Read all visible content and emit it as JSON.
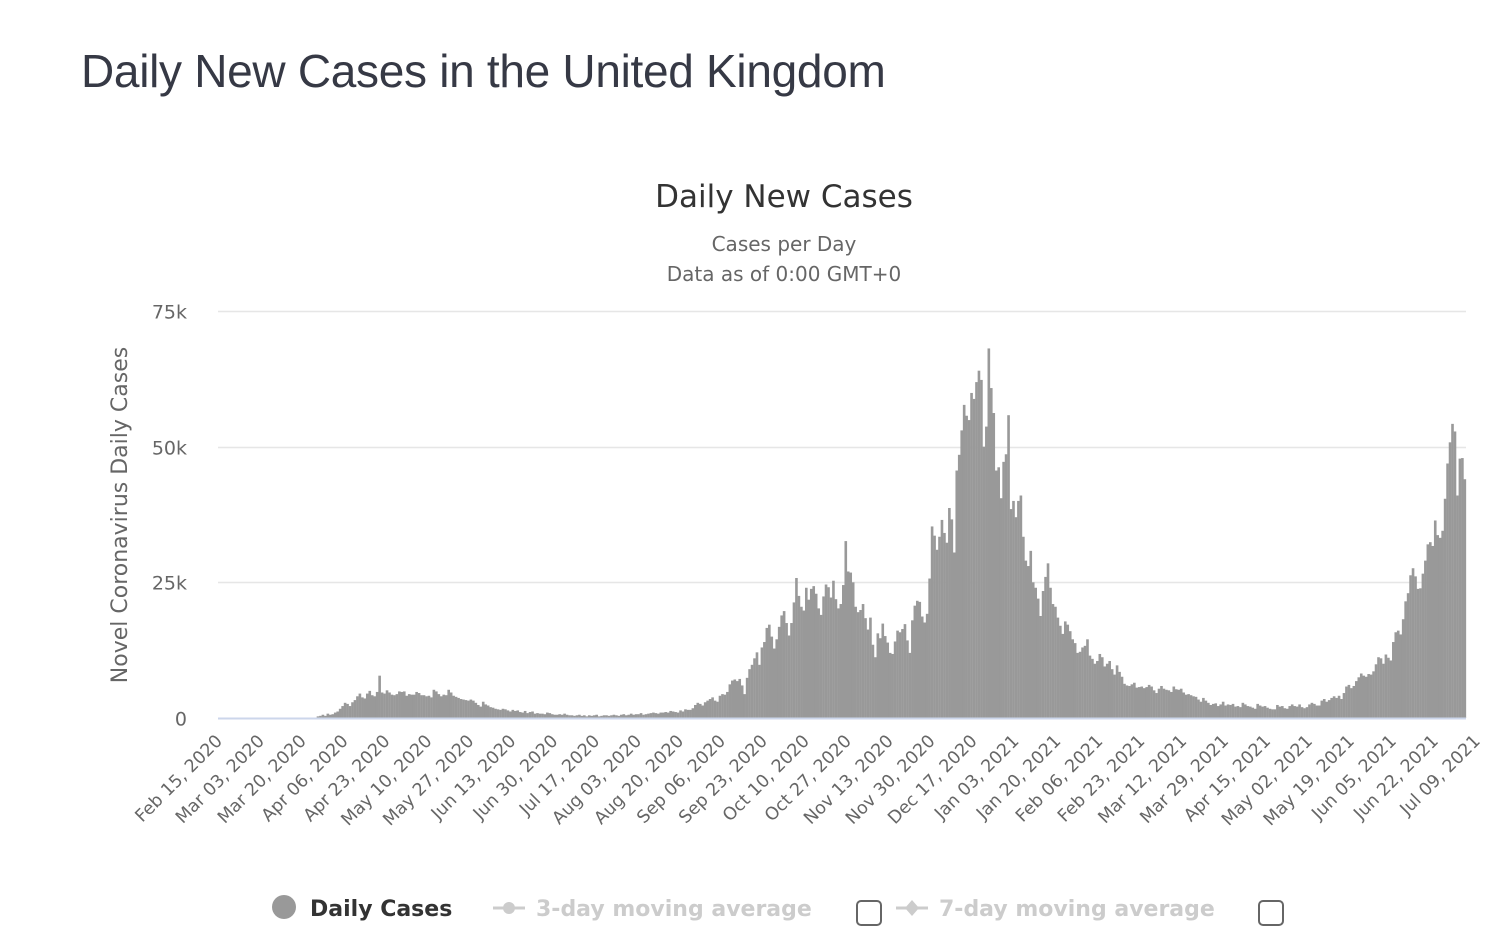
{
  "page": {
    "title": "Daily New Cases in the United Kingdom"
  },
  "colors": {
    "bar": "#999999",
    "grid": "#e6e6e6",
    "baseline": "#ccd6eb",
    "legend_active": "#333333",
    "legend_inactive": "#cccccc",
    "legend_checkbox": "#666666"
  },
  "legend": {
    "items": [
      {
        "label": "Daily Cases",
        "icon": "circle-marker-icon",
        "active": true
      },
      {
        "label": "3-day moving average",
        "icon": "line-circle-marker-icon",
        "active": false,
        "checkbox": false
      },
      {
        "label": "7-day moving average",
        "icon": "line-diamond-marker-icon",
        "active": false,
        "checkbox": false
      }
    ]
  },
  "chart_data": {
    "type": "bar",
    "title": "Daily New Cases",
    "subtitle_lines": [
      "Cases per Day",
      "Data as of 0:00 GMT+0"
    ],
    "xlabel": "",
    "ylabel": "Novel Coronavirus Daily Cases",
    "ylim": [
      0,
      75000
    ],
    "y_ticks": [
      0,
      25000,
      50000,
      75000
    ],
    "y_tick_labels": [
      "0",
      "25k",
      "50k",
      "75k"
    ],
    "grid": true,
    "legend_position": "bottom",
    "start_date": "2020-02-15",
    "x_tick_labels": [
      "Feb 15, 2020",
      "Mar 03, 2020",
      "Mar 20, 2020",
      "Apr 06, 2020",
      "Apr 23, 2020",
      "May 10, 2020",
      "May 27, 2020",
      "Jun 13, 2020",
      "Jun 30, 2020",
      "Jul 17, 2020",
      "Aug 03, 2020",
      "Aug 20, 2020",
      "Sep 06, 2020",
      "Sep 23, 2020",
      "Oct 10, 2020",
      "Oct 27, 2020",
      "Nov 13, 2020",
      "Nov 30, 2020",
      "Dec 17, 2020",
      "Jan 03, 2021",
      "Jan 20, 2021",
      "Feb 06, 2021",
      "Feb 23, 2021",
      "Mar 12, 2021",
      "Mar 29, 2021",
      "Apr 15, 2021",
      "May 02, 2021",
      "May 19, 2021",
      "Jun 05, 2021",
      "Jun 22, 2021",
      "Jul 09, 2021"
    ],
    "x_tick_interval_days": 17,
    "series": [
      {
        "name": "Daily Cases",
        "values": [
          0,
          0,
          0,
          0,
          0,
          0,
          0,
          0,
          0,
          0,
          0,
          0,
          0,
          0,
          0,
          0,
          0,
          0,
          0,
          0,
          0,
          0,
          0,
          0,
          0,
          0,
          0,
          0,
          0,
          0,
          0,
          0,
          0,
          0,
          0,
          0,
          0,
          0,
          0,
          0,
          300,
          400,
          600,
          400,
          800,
          600,
          700,
          1000,
          1200,
          1700,
          2200,
          2800,
          2600,
          2200,
          2900,
          3300,
          4000,
          4500,
          3800,
          3600,
          4500,
          5000,
          4200,
          4000,
          4800,
          7800,
          4700,
          4500,
          5100,
          4700,
          4300,
          4200,
          4400,
          4900,
          4800,
          4900,
          4100,
          4400,
          4300,
          4300,
          4800,
          4600,
          4200,
          4200,
          4000,
          4100,
          3800,
          5200,
          4900,
          4400,
          4000,
          4300,
          4200,
          5200,
          4700,
          4100,
          3900,
          3700,
          3500,
          3400,
          3300,
          3200,
          3400,
          3200,
          2800,
          2400,
          2100,
          3000,
          2500,
          2300,
          2000,
          1900,
          1700,
          1600,
          1500,
          1700,
          1600,
          1400,
          1200,
          1500,
          1300,
          1400,
          1100,
          1000,
          1300,
          900,
          1100,
          1200,
          800,
          900,
          800,
          800,
          700,
          1000,
          900,
          700,
          600,
          600,
          700,
          600,
          800,
          600,
          500,
          500,
          400,
          500,
          600,
          400,
          500,
          300,
          500,
          400,
          500,
          600,
          300,
          400,
          500,
          500,
          400,
          500,
          600,
          500,
          400,
          600,
          700,
          500,
          600,
          800,
          600,
          700,
          700,
          900,
          600,
          700,
          800,
          900,
          1000,
          900,
          800,
          1000,
          1000,
          1100,
          1000,
          1300,
          1200,
          1100,
          1000,
          1400,
          1200,
          1600,
          1500,
          1500,
          1800,
          2400,
          2800,
          2600,
          2300,
          2900,
          3200,
          3500,
          3800,
          3200,
          3000,
          4100,
          4400,
          4300,
          4800,
          6200,
          6900,
          7100,
          6800,
          7200,
          6000,
          4400,
          7400,
          9000,
          9800,
          11000,
          12100,
          9800,
          13000,
          14000,
          16600,
          17200,
          15000,
          12800,
          14500,
          16800,
          18900,
          19700,
          17500,
          15200,
          17500,
          21300,
          25800,
          22500,
          20500,
          19800,
          24000,
          21800,
          23800,
          24300,
          22900,
          20200,
          19000,
          22400,
          24600,
          24100,
          22200,
          25300,
          21900,
          20200,
          21000,
          24500,
          32600,
          27000,
          26800,
          25000,
          20500,
          19500,
          19900,
          21000,
          18400,
          16300,
          18500,
          13500,
          11200,
          15600,
          14700,
          17400,
          15100,
          13900,
          12000,
          11800,
          14100,
          16100,
          15800,
          16400,
          17300,
          14300,
          12000,
          18000,
          20700,
          21600,
          21400,
          18700,
          17600,
          19200,
          25700,
          35300,
          33600,
          31000,
          33400,
          36500,
          34100,
          32300,
          38700,
          36600,
          30500,
          45600,
          48500,
          53000,
          57700,
          55700,
          54900,
          59900,
          58800,
          61900,
          64000,
          62300,
          50000,
          53700,
          68100,
          60800,
          56200,
          45600,
          46200,
          40500,
          47200,
          48600,
          55800,
          38500,
          40000,
          37000,
          40000,
          41000,
          33400,
          29000,
          28000,
          30800,
          25000,
          24000,
          22000,
          18800,
          23400,
          26000,
          28500,
          24000,
          21000,
          20500,
          18500,
          17000,
          15500,
          17800,
          17200,
          16000,
          14500,
          13800,
          12000,
          12200,
          13000,
          13300,
          14500,
          11500,
          10900,
          10000,
          10500,
          11800,
          11200,
          9500,
          10000,
          10500,
          9000,
          8000,
          9700,
          8500,
          7600,
          6300,
          6000,
          5900,
          6200,
          6500,
          5600,
          5700,
          5800,
          5500,
          5700,
          6100,
          5800,
          5100,
          4600,
          5400,
          5900,
          5400,
          5200,
          5100,
          4800,
          5800,
          5300,
          5200,
          5400,
          4700,
          4300,
          4400,
          4200,
          4000,
          3900,
          3400,
          3000,
          3700,
          3200,
          2800,
          2400,
          2600,
          2700,
          2200,
          2500,
          3000,
          2300,
          2500,
          2400,
          2600,
          2100,
          2200,
          2000,
          2800,
          2500,
          2200,
          2100,
          1900,
          1700,
          2600,
          2300,
          2100,
          2200,
          1900,
          1700,
          1600,
          1600,
          2400,
          2100,
          2200,
          1800,
          1700,
          2200,
          2500,
          2200,
          2100,
          2500,
          2000,
          1800,
          2000,
          2500,
          2800,
          2600,
          2300,
          2300,
          3200,
          3500,
          3000,
          3300,
          3700,
          4000,
          3700,
          4100,
          3500,
          4600,
          5800,
          6100,
          5500,
          5900,
          6800,
          7500,
          8200,
          7800,
          7600,
          8100,
          8000,
          8600,
          9900,
          11200,
          11000,
          10000,
          11700,
          11100,
          10600,
          14000,
          15800,
          16100,
          15400,
          18200,
          21500,
          23000,
          26300,
          27600,
          26100,
          23800,
          23900,
          26600,
          29000,
          32000,
          32400,
          31700,
          36400,
          33700,
          33200,
          34500,
          40400,
          46900,
          50800,
          54200,
          52800,
          41000,
          47800,
          47900,
          44000
        ]
      }
    ]
  }
}
